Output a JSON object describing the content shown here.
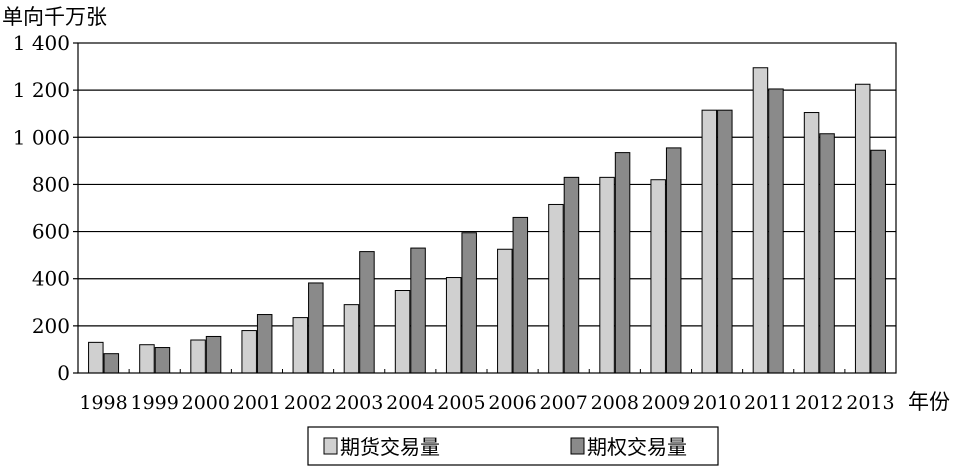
{
  "chart_data": {
    "type": "bar",
    "ylabel": "单向千万张",
    "xlabel": "年份",
    "ylim": [
      0,
      1400
    ],
    "yticks": [
      0,
      200,
      400,
      600,
      800,
      1000,
      1200,
      1400
    ],
    "ytick_labels": [
      "0",
      "200",
      "400",
      "600",
      "800",
      "1 000",
      "1 200",
      "1 400"
    ],
    "grid": true,
    "legend_position": "bottom-center",
    "categories": [
      "1998",
      "1999",
      "2000",
      "2001",
      "2002",
      "2003",
      "2004",
      "2005",
      "2006",
      "2007",
      "2008",
      "2009",
      "2010",
      "2011",
      "2012",
      "2013"
    ],
    "series": [
      {
        "name": "期货交易量",
        "color": "#d0d0d0",
        "values": [
          130,
          120,
          140,
          180,
          235,
          290,
          350,
          405,
          525,
          715,
          830,
          820,
          1115,
          1295,
          1105,
          1225
        ]
      },
      {
        "name": "期权交易量",
        "color": "#8a8a8a",
        "values": [
          82,
          108,
          155,
          248,
          382,
          515,
          530,
          595,
          660,
          830,
          935,
          955,
          1115,
          1205,
          1015,
          945
        ]
      }
    ]
  }
}
